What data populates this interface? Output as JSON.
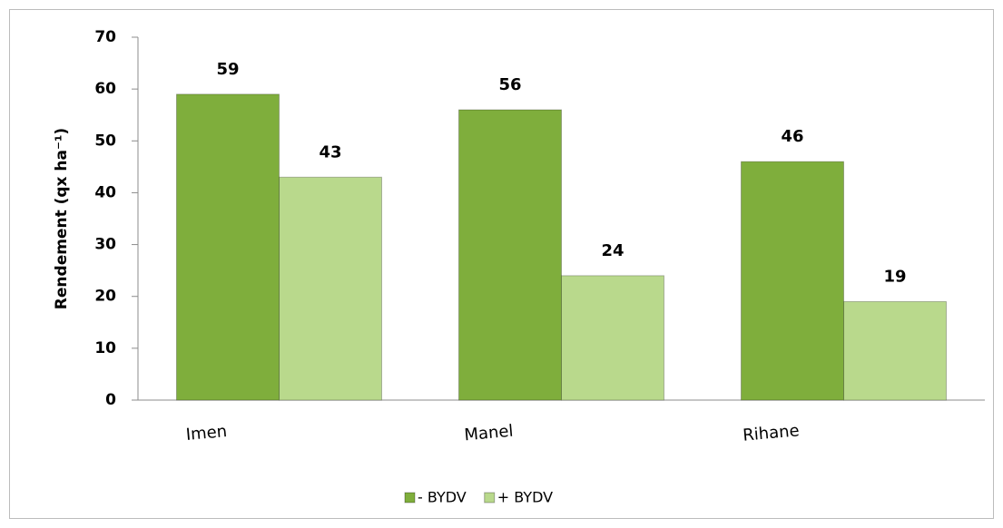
{
  "chart_data": {
    "type": "bar",
    "y_label": "Rendement (qx ha⁻¹)",
    "categories": [
      "Imen",
      "Manel",
      "Rihane"
    ],
    "series": [
      {
        "name": "- BYDV",
        "color": "#7fae3c",
        "values": [
          59,
          56,
          46
        ]
      },
      {
        "name": "+ BYDV",
        "color": "#b9d98c",
        "values": [
          43,
          24,
          19
        ]
      }
    ],
    "ylim": [
      0,
      70
    ],
    "yticks": [
      0,
      10,
      20,
      30,
      40,
      50,
      60,
      70
    ],
    "legend": "bottom"
  }
}
